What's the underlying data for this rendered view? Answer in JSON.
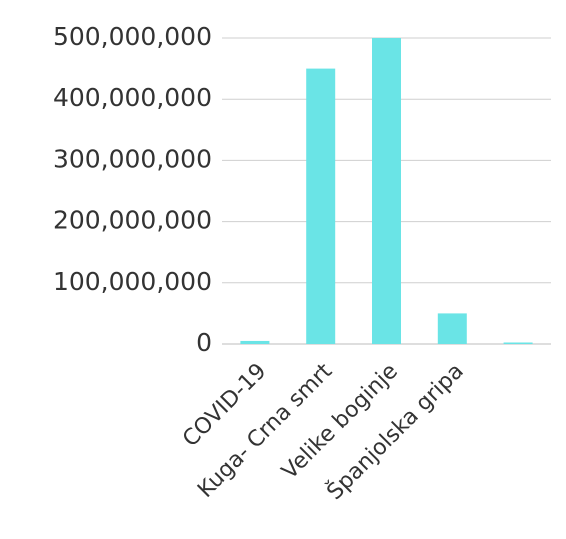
{
  "chart_data": {
    "type": "bar",
    "categories": [
      "COVID-19",
      "Kuga- Crna smrt",
      "Velike boginje",
      "Španjolska gripa",
      ""
    ],
    "values": [
      5000000,
      450000000,
      500000000,
      50000000,
      1000000
    ],
    "ylim": [
      0,
      500000000
    ],
    "yticks": [
      0,
      100000000,
      200000000,
      300000000,
      400000000,
      500000000
    ],
    "ytick_labels": [
      "0",
      "100,000,000",
      "200,000,000",
      "300,000,000",
      "400,000,000",
      "500,000,000"
    ],
    "grid": true,
    "legend": "none",
    "bar_color": "#6ae4e6"
  }
}
